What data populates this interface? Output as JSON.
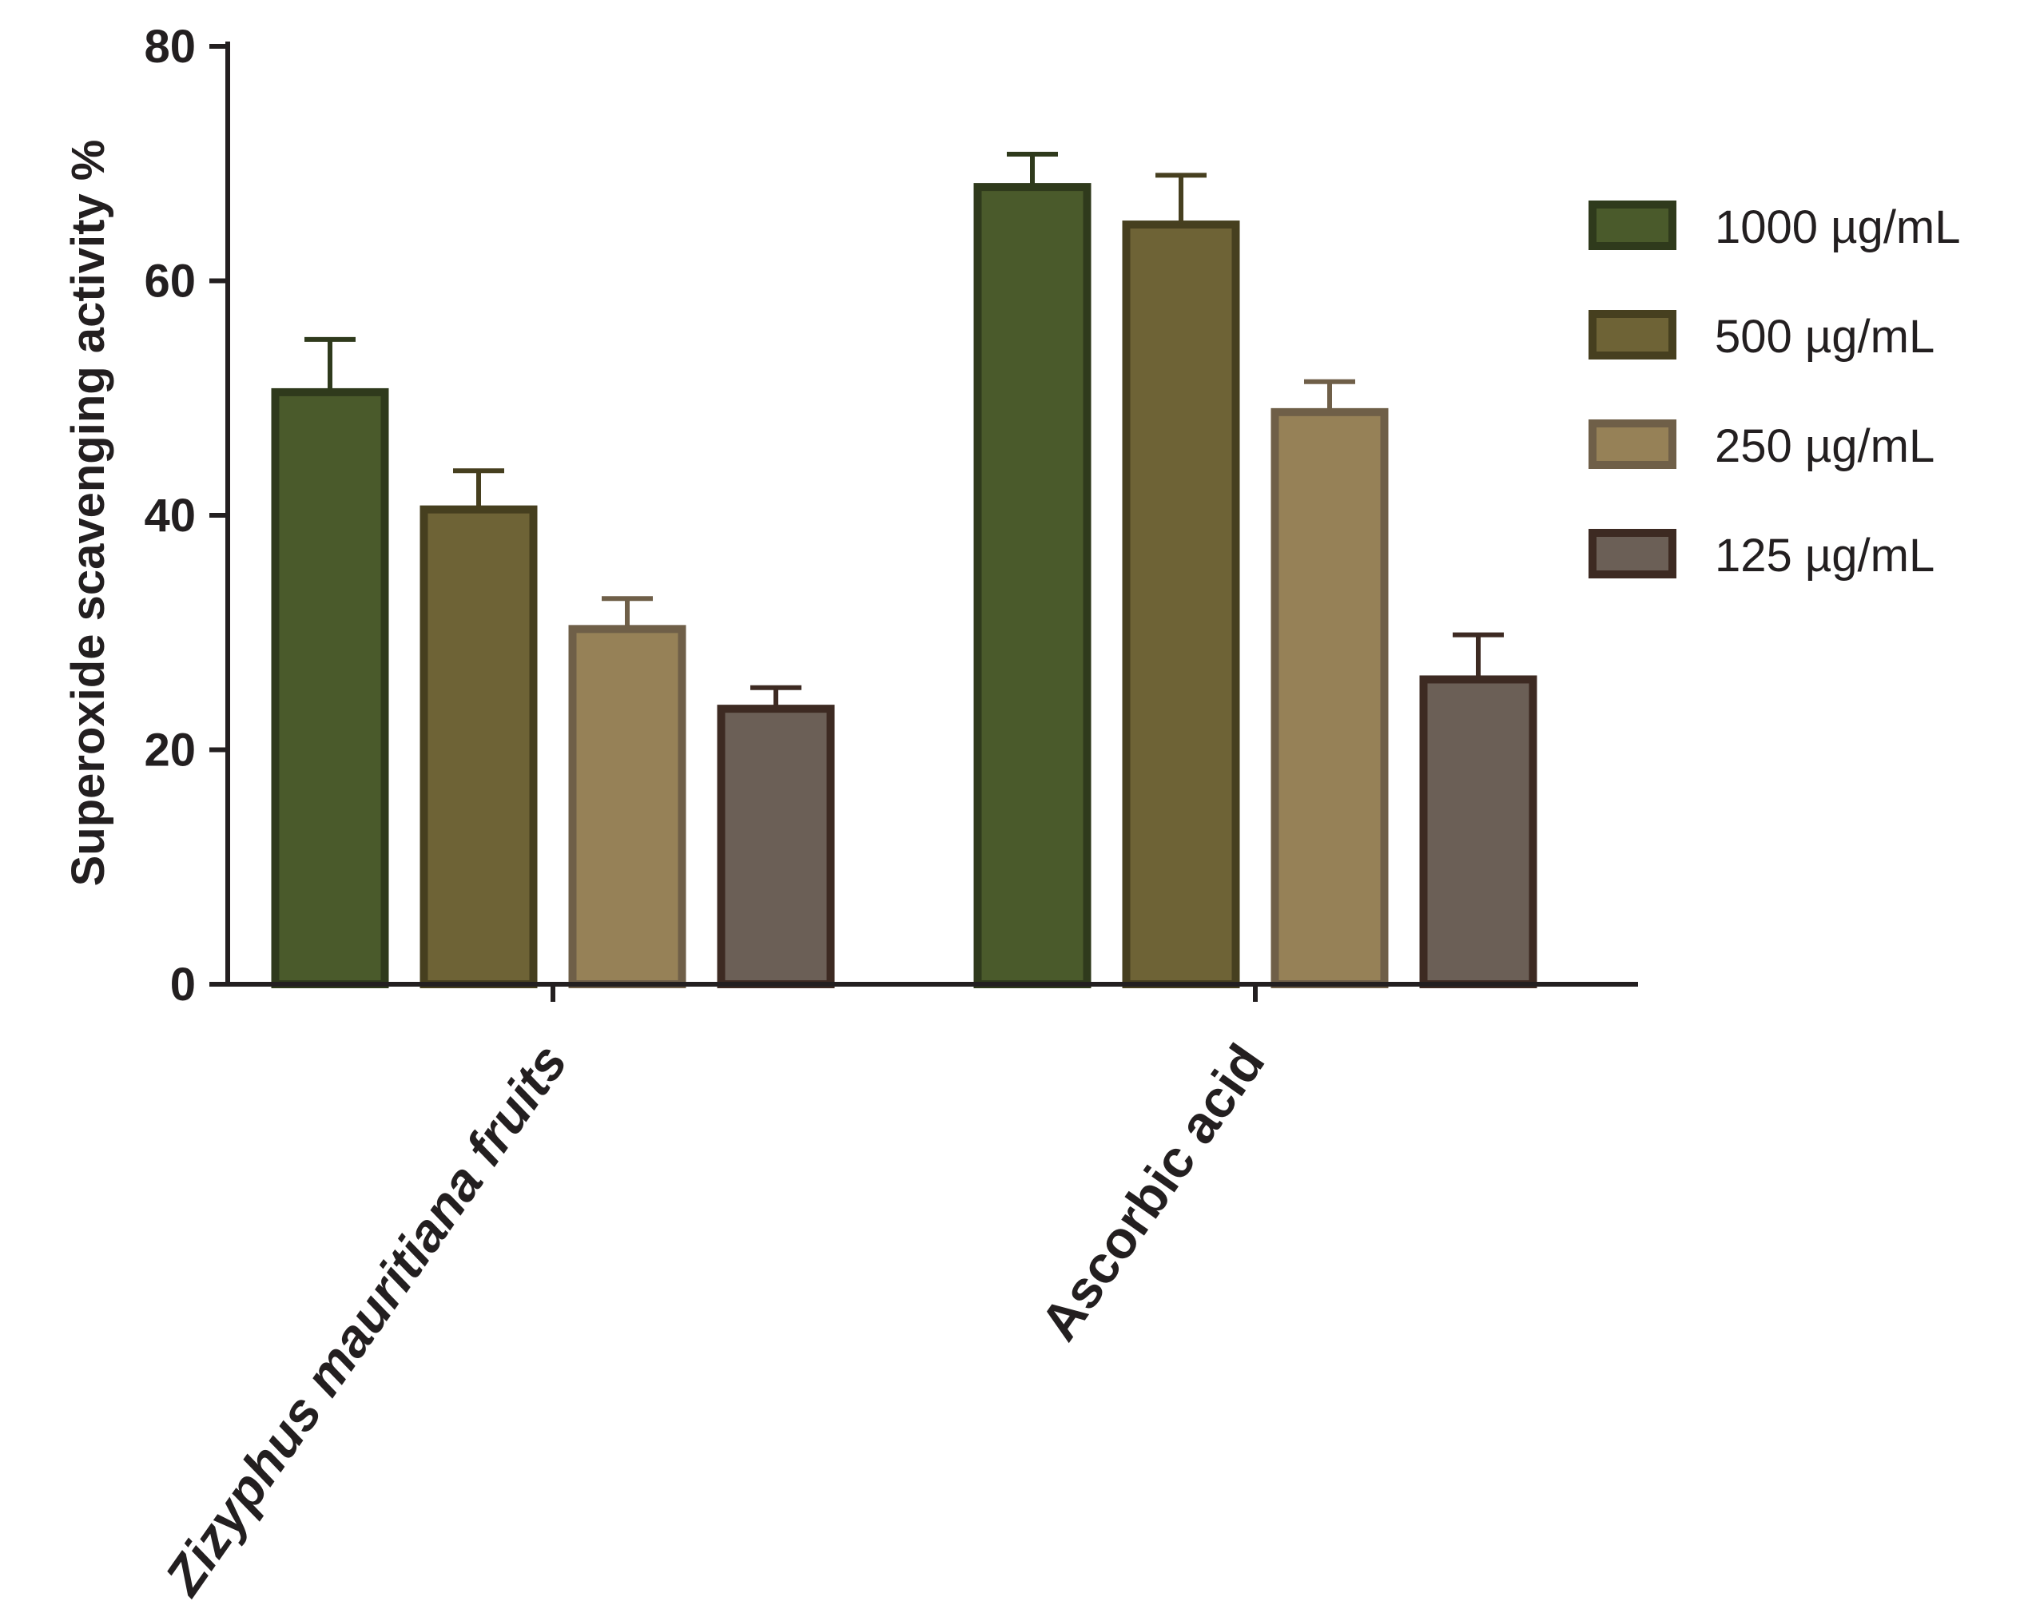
{
  "chart_data": {
    "type": "bar",
    "xlabel": "",
    "ylabel": "Superoxide scavenging activity %",
    "ylim": [
      0,
      80
    ],
    "yticks": [
      "0",
      "20",
      "40",
      "60",
      "80"
    ],
    "categories": [
      "Zizyphus mauritiana fruits",
      "Ascorbic acid"
    ],
    "series": [
      {
        "name": "1000 µg/mL",
        "values": [
          50.5,
          68.0
        ],
        "errors": [
          4.5,
          2.8
        ],
        "color": "#4a5a2b",
        "edge": "#2f3a1c"
      },
      {
        "name": "500 µg/mL",
        "values": [
          40.5,
          64.8
        ],
        "errors": [
          3.3,
          4.2
        ],
        "color": "#6e6336",
        "edge": "#463f1f"
      },
      {
        "name": "250 µg/mL",
        "values": [
          30.3,
          48.8
        ],
        "errors": [
          2.6,
          2.6
        ],
        "color": "#968157",
        "edge": "#6f5f48"
      },
      {
        "name": "125 µg/mL",
        "values": [
          23.5,
          26.0
        ],
        "errors": [
          1.8,
          3.8
        ],
        "color": "#6b5f56",
        "edge": "#3d2a22"
      }
    ],
    "grid": false,
    "legend_position": "right"
  }
}
